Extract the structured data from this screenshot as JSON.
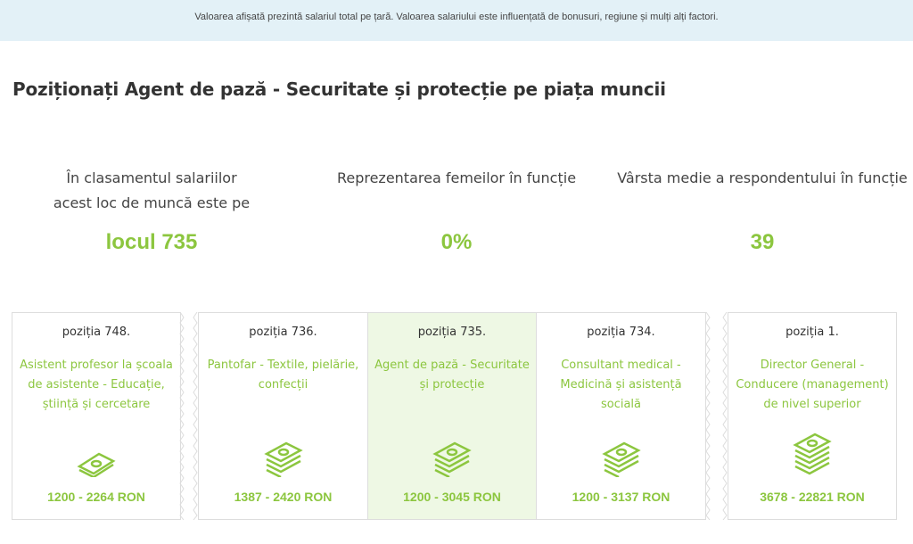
{
  "notice": "Valoarea afișată prezintă salariul total pe țară. Valoarea salariului este influențată de bonusuri, regiune și mulți alți factori.",
  "title": "Poziționați Agent de pază - Securitate și protecție pe piața muncii",
  "stats": [
    {
      "label_line1": "În clasamentul salariilor",
      "label_line2": "acest loc de muncă este pe",
      "value": "locul 735"
    },
    {
      "label_line1": "Reprezentarea femeilor în funcție",
      "label_line2": "",
      "value": "0%"
    },
    {
      "label_line1": "Vârsta medie a respondentului în funcție",
      "label_line2": "",
      "value": "39"
    }
  ],
  "cards": [
    {
      "position": "poziția 748.",
      "name": "Asistent profesor la școala de asistente - Educație, știință și cercetare",
      "range": "1200 - 2264 RON",
      "icon": "money-stack-icon"
    },
    {
      "position": "poziția 736.",
      "name": "Pantofar - Textile, pielărie, confecții",
      "range": "1387 - 2420 RON",
      "icon": "money-stack-icon"
    },
    {
      "position": "poziția 735.",
      "name": "Agent de pază - Securitate și protecție",
      "range": "1200 - 3045 RON",
      "icon": "money-stack-icon",
      "active": true
    },
    {
      "position": "poziția 734.",
      "name": "Consultant medical - Medicină și asistență socială",
      "range": "1200 - 3137 RON",
      "icon": "money-stack-icon"
    },
    {
      "position": "poziția 1.",
      "name": "Director General - Conducere (management) de nivel superior",
      "range": "3678 - 22821 RON",
      "icon": "money-stack-icon"
    }
  ],
  "colors": {
    "accent": "#8cc63f",
    "notice_bg": "#e3f1f7",
    "active_bg": "#eef8e4"
  }
}
